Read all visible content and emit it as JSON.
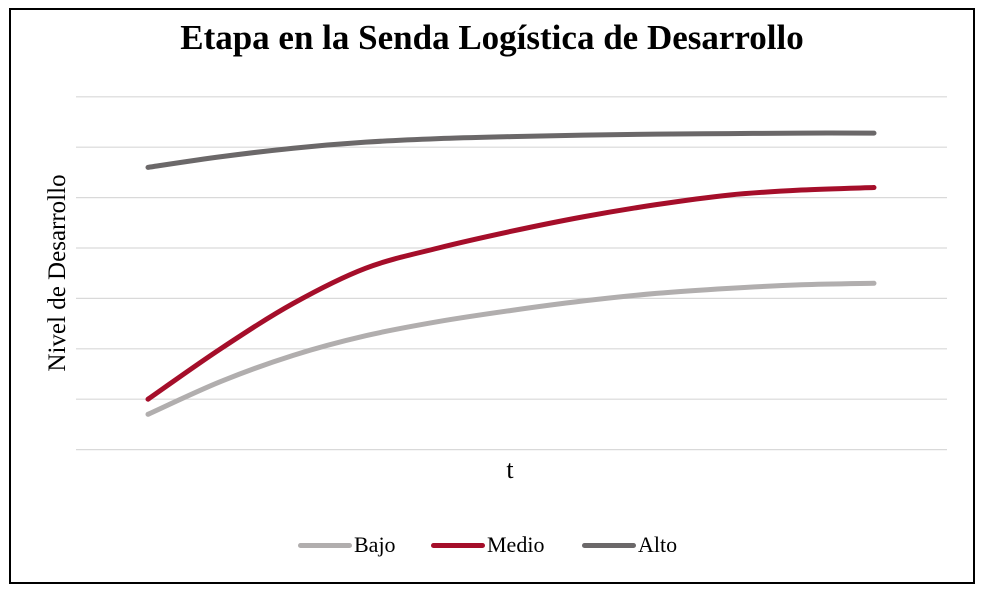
{
  "colors": {
    "bajo": "#b1aeae",
    "medio": "#a50e2a",
    "alto": "#6b6869",
    "grid": "#d9d9d9"
  },
  "chart_data": {
    "type": "line",
    "title": "Etapa en la Senda Logística de Desarrollo",
    "xlabel": "t",
    "ylabel": "Nivel de Desarrollo",
    "grid": true,
    "legend": "bottom",
    "x": [
      0,
      0.1,
      0.2,
      0.3,
      0.4,
      0.5,
      0.6,
      0.7,
      0.8,
      0.9,
      1.0
    ],
    "ylim": [
      0,
      7
    ],
    "series": [
      {
        "name": "Bajo",
        "color": "#b1aeae",
        "values": [
          0.7,
          1.35,
          1.87,
          2.26,
          2.54,
          2.76,
          2.95,
          3.1,
          3.2,
          3.27,
          3.3
        ]
      },
      {
        "name": "Medio",
        "color": "#a50e2a",
        "values": [
          1.0,
          2.0,
          2.9,
          3.6,
          4.0,
          4.33,
          4.62,
          4.86,
          5.05,
          5.15,
          5.2
        ]
      },
      {
        "name": "Alto",
        "color": "#6b6869",
        "values": [
          5.6,
          5.81,
          5.98,
          6.1,
          6.17,
          6.21,
          6.24,
          6.26,
          6.27,
          6.28,
          6.28
        ]
      }
    ]
  }
}
